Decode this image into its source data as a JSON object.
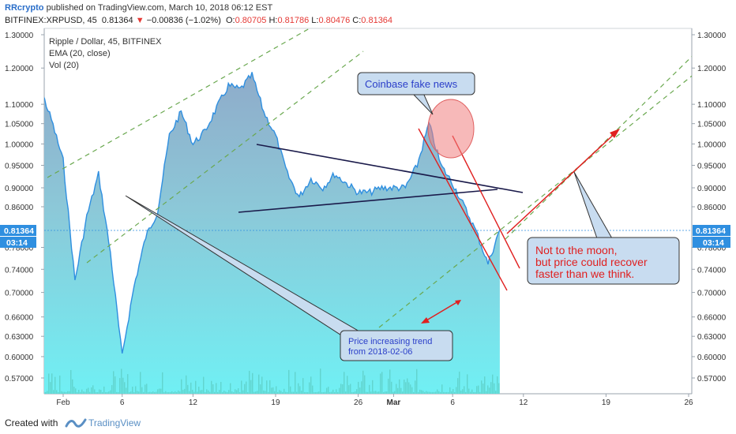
{
  "header": {
    "brand": "RRcrypto",
    "published": " published on TradingView.com, March 10, 2018 06:12 EST",
    "symbol": "BITFINEX:XRPUSD, 45",
    "last": "0.81364",
    "change_arrow": "▼",
    "change": "−0.00836 (−1.02%)",
    "o_label": "O:",
    "o": "0.80705",
    "h_label": "H:",
    "h": "0.81786",
    "l_label": "L:",
    "l": "0.80476",
    "c_label": "C:",
    "c": "0.81364"
  },
  "legend": {
    "title": "Ripple / Dollar, 45, BITFINEX",
    "ema": "EMA (20, close)",
    "vol": "Vol (20)"
  },
  "price_badges": {
    "price": "0.81364",
    "time": "03:14"
  },
  "annotations": {
    "coinbase": "Coinbase fake news",
    "trend_line1": "Price increasing trend",
    "trend_line2": "from 2018-02-06",
    "moon_line1": "Not to the moon,",
    "moon_line2": "but price could recover",
    "moon_line3": "faster than we think."
  },
  "footer": {
    "created": "Created with",
    "tv": "TradingView"
  },
  "colors": {
    "line": "#2f8fe0",
    "area_top": "#6f9fc6",
    "area_bottom": "#6ff0f5",
    "axis_text": "#333333",
    "badge": "#2f8fe0",
    "red": "#e02020",
    "green_dash": "#6aa84f",
    "callout_fill": "#c8dcf0"
  },
  "chart_data": {
    "type": "line",
    "title": "Ripple / Dollar, 45, BITFINEX",
    "x_ticks": [
      "Feb",
      "6",
      "12",
      "19",
      "26",
      "Mar",
      "6",
      "12",
      "19",
      "26"
    ],
    "y_ticks": [
      "1.30000",
      "1.20000",
      "1.10000",
      "1.05000",
      "1.00000",
      "0.95000",
      "0.90000",
      "0.86000",
      "0.78000",
      "0.74000",
      "0.70000",
      "0.66000",
      "0.63000",
      "0.60000",
      "0.57000"
    ],
    "y_scale": "log",
    "x_date_range": [
      "2018-02-01",
      "2018-03-26"
    ],
    "series": [
      {
        "type": "line",
        "dates": [
          "2018-01-29",
          "2018-01-30",
          "2018-01-31",
          "2018-02-01",
          "2018-02-02",
          "2018-02-03",
          "2018-02-04",
          "2018-02-05",
          "2018-02-06",
          "2018-02-06",
          "2018-02-07",
          "2018-02-08",
          "2018-02-09",
          "2018-02-10",
          "2018-02-11",
          "2018-02-12",
          "2018-02-13",
          "2018-02-14",
          "2018-02-15",
          "2018-02-16",
          "2018-02-17",
          "2018-02-18",
          "2018-02-19",
          "2018-02-20",
          "2018-02-21",
          "2018-02-22",
          "2018-02-23",
          "2018-02-24",
          "2018-02-25",
          "2018-02-26",
          "2018-02-27",
          "2018-02-28",
          "2018-03-01",
          "2018-03-02",
          "2018-03-03",
          "2018-03-04",
          "2018-03-05",
          "2018-03-06",
          "2018-03-07",
          "2018-03-08",
          "2018-03-09",
          "2018-03-10"
        ],
        "values": [
          1.23,
          1.15,
          1.06,
          0.96,
          0.72,
          0.84,
          0.93,
          0.77,
          0.6,
          0.63,
          0.71,
          0.8,
          0.85,
          1.02,
          1.08,
          1.0,
          1.03,
          1.09,
          1.15,
          1.14,
          1.18,
          1.08,
          1.02,
          0.93,
          0.88,
          0.92,
          0.9,
          0.93,
          0.91,
          0.89,
          0.89,
          0.9,
          0.9,
          0.9,
          0.95,
          1.05,
          0.95,
          0.91,
          0.86,
          0.81,
          0.75,
          0.81364
        ]
      }
    ]
  }
}
